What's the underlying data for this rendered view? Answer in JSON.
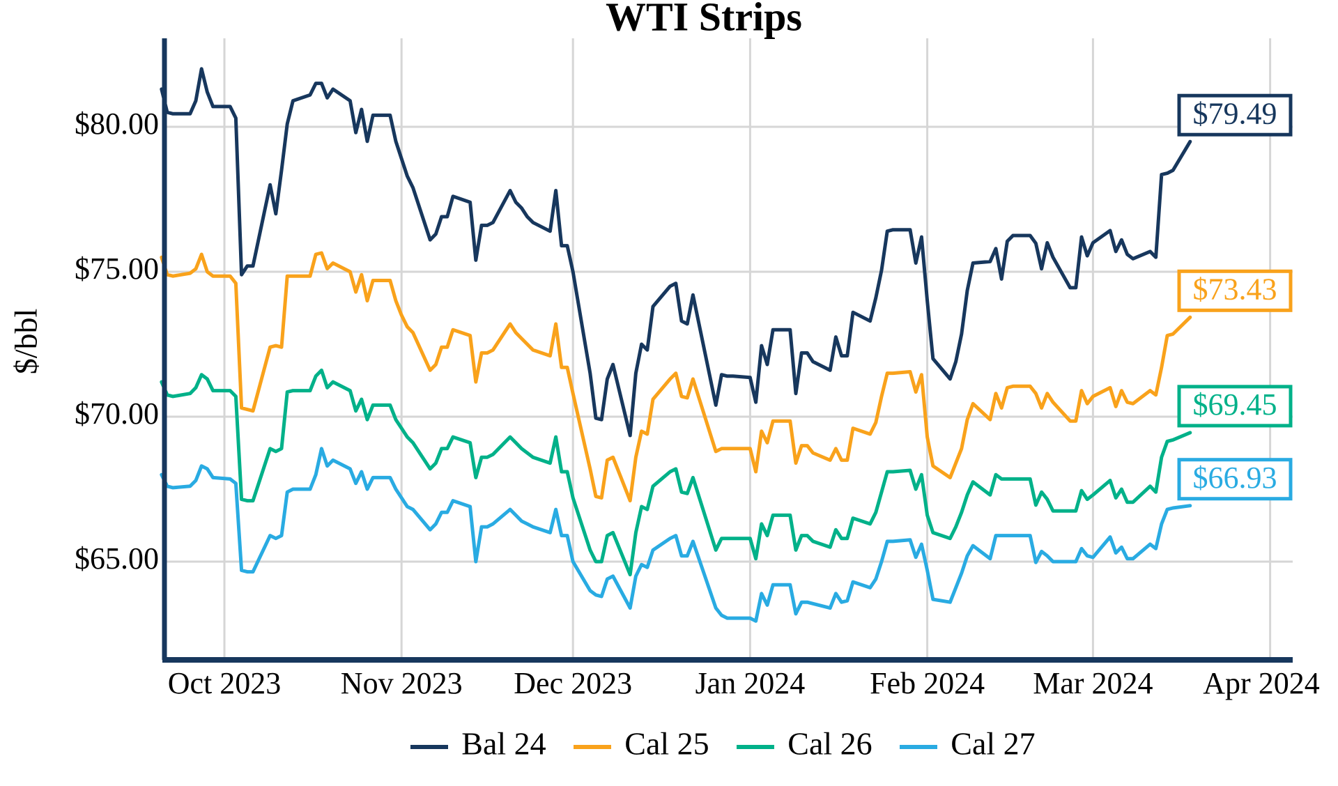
{
  "title": "WTI Strips",
  "y_axis_label": "$/bbl",
  "colors": {
    "bal24": "#17375d",
    "cal25": "#f9a21b",
    "cal26": "#00b189",
    "cal27": "#29abe2",
    "grid": "#d6d6d6",
    "axis": "#17375d",
    "background": "#ffffff"
  },
  "end_labels": [
    {
      "series": "Bal 24",
      "text": "$79.49"
    },
    {
      "series": "Cal 25",
      "text": "$73.43"
    },
    {
      "series": "Cal 26",
      "text": "$69.45"
    },
    {
      "series": "Cal 27",
      "text": "$66.93"
    }
  ],
  "chart_data": {
    "type": "line",
    "title": "WTI Strips",
    "xlabel": "",
    "ylabel": "$/bbl",
    "ylim": [
      61.5,
      83.2
    ],
    "yticks": [
      65,
      70,
      75,
      80
    ],
    "ytick_labels": [
      "$65.00",
      "$70.00",
      "$75.00",
      "$80.00"
    ],
    "xtick_labels": [
      "Oct 2023",
      "Nov 2023",
      "Dec 2023",
      "Jan 2024",
      "Feb 2024",
      "Mar 2024",
      "Apr 2024"
    ],
    "xtick_dates": [
      "2023-10-01",
      "2023-11-01",
      "2023-12-01",
      "2024-01-01",
      "2024-02-01",
      "2024-03-01",
      "2024-04-01"
    ],
    "grid": true,
    "legend_position": "bottom",
    "x": [
      "2023-09-20",
      "2023-09-21",
      "2023-09-22",
      "2023-09-25",
      "2023-09-26",
      "2023-09-27",
      "2023-09-28",
      "2023-09-29",
      "2023-10-02",
      "2023-10-03",
      "2023-10-04",
      "2023-10-05",
      "2023-10-06",
      "2023-10-09",
      "2023-10-10",
      "2023-10-11",
      "2023-10-12",
      "2023-10-13",
      "2023-10-16",
      "2023-10-17",
      "2023-10-18",
      "2023-10-19",
      "2023-10-20",
      "2023-10-23",
      "2023-10-24",
      "2023-10-25",
      "2023-10-26",
      "2023-10-27",
      "2023-10-30",
      "2023-10-31",
      "2023-11-01",
      "2023-11-02",
      "2023-11-03",
      "2023-11-06",
      "2023-11-07",
      "2023-11-08",
      "2023-11-09",
      "2023-11-10",
      "2023-11-13",
      "2023-11-14",
      "2023-11-15",
      "2023-11-16",
      "2023-11-17",
      "2023-11-20",
      "2023-11-21",
      "2023-11-22",
      "2023-11-23",
      "2023-11-24",
      "2023-11-27",
      "2023-11-28",
      "2023-11-29",
      "2023-11-30",
      "2023-12-01",
      "2023-12-04",
      "2023-12-05",
      "2023-12-06",
      "2023-12-07",
      "2023-12-08",
      "2023-12-11",
      "2023-12-12",
      "2023-12-13",
      "2023-12-14",
      "2023-12-15",
      "2023-12-18",
      "2023-12-19",
      "2023-12-20",
      "2023-12-21",
      "2023-12-22",
      "2023-12-26",
      "2023-12-27",
      "2023-12-28",
      "2023-12-29",
      "2024-01-01",
      "2024-01-02",
      "2024-01-03",
      "2024-01-04",
      "2024-01-05",
      "2024-01-08",
      "2024-01-09",
      "2024-01-10",
      "2024-01-11",
      "2024-01-12",
      "2024-01-15",
      "2024-01-16",
      "2024-01-17",
      "2024-01-18",
      "2024-01-19",
      "2024-01-22",
      "2024-01-23",
      "2024-01-24",
      "2024-01-25",
      "2024-01-26",
      "2024-01-29",
      "2024-01-30",
      "2024-01-31",
      "2024-02-01",
      "2024-02-02",
      "2024-02-05",
      "2024-02-06",
      "2024-02-07",
      "2024-02-08",
      "2024-02-09",
      "2024-02-12",
      "2024-02-13",
      "2024-02-14",
      "2024-02-15",
      "2024-02-16",
      "2024-02-19",
      "2024-02-20",
      "2024-02-21",
      "2024-02-22",
      "2024-02-23",
      "2024-02-26",
      "2024-02-27",
      "2024-02-28",
      "2024-02-29",
      "2024-03-01",
      "2024-03-04",
      "2024-03-05",
      "2024-03-06",
      "2024-03-07",
      "2024-03-08",
      "2024-03-11",
      "2024-03-12",
      "2024-03-13",
      "2024-03-14",
      "2024-03-15",
      "2024-03-18"
    ],
    "series": [
      {
        "name": "Bal 24",
        "color": "#17375d",
        "end_label": "$79.49",
        "values": [
          81.3,
          80.5,
          80.45,
          80.45,
          80.9,
          82.0,
          81.2,
          80.7,
          80.7,
          80.3,
          74.9,
          75.2,
          75.2,
          78.0,
          77.0,
          78.5,
          80.1,
          80.9,
          81.1,
          81.5,
          81.5,
          81.0,
          81.3,
          80.9,
          79.8,
          80.6,
          79.5,
          80.4,
          80.4,
          79.5,
          78.9,
          78.3,
          77.9,
          76.1,
          76.3,
          76.9,
          76.9,
          77.6,
          77.4,
          75.4,
          76.6,
          76.6,
          76.7,
          77.8,
          77.4,
          77.2,
          76.9,
          76.7,
          76.4,
          77.8,
          75.9,
          75.9,
          75.0,
          71.5,
          69.95,
          69.9,
          71.3,
          71.8,
          69.35,
          71.5,
          72.5,
          72.3,
          73.8,
          74.5,
          74.6,
          73.3,
          73.2,
          74.2,
          70.4,
          71.45,
          71.4,
          71.4,
          71.35,
          70.5,
          72.45,
          71.8,
          73.0,
          73.0,
          70.8,
          72.2,
          72.2,
          71.9,
          71.6,
          72.75,
          72.1,
          72.1,
          73.6,
          73.3,
          74.1,
          75.05,
          76.4,
          76.45,
          76.45,
          75.3,
          76.2,
          74.0,
          72.0,
          71.3,
          71.9,
          72.85,
          74.35,
          75.3,
          75.35,
          75.8,
          74.75,
          76.05,
          76.25,
          76.25,
          75.98,
          75.1,
          76.0,
          75.5,
          74.45,
          74.45,
          76.2,
          75.55,
          76.0,
          76.42,
          75.7,
          76.1,
          75.6,
          75.45,
          75.7,
          75.5,
          78.35,
          78.4,
          78.5,
          79.49
        ]
      },
      {
        "name": "Cal 25",
        "color": "#f9a21b",
        "end_label": "$73.43",
        "values": [
          75.5,
          74.9,
          74.85,
          74.95,
          75.1,
          75.6,
          75.0,
          74.85,
          74.85,
          74.6,
          70.3,
          70.25,
          70.2,
          72.4,
          72.45,
          72.4,
          74.85,
          74.85,
          74.85,
          75.6,
          75.65,
          75.1,
          75.3,
          75.0,
          74.3,
          74.9,
          74.0,
          74.7,
          74.7,
          74.0,
          73.5,
          73.1,
          72.9,
          71.6,
          71.8,
          72.4,
          72.4,
          73.0,
          72.8,
          71.2,
          72.2,
          72.2,
          72.3,
          73.2,
          72.9,
          72.7,
          72.5,
          72.3,
          72.1,
          73.2,
          71.7,
          71.7,
          70.8,
          68.2,
          67.25,
          67.2,
          68.5,
          68.6,
          67.1,
          68.6,
          69.5,
          69.4,
          70.6,
          71.3,
          71.5,
          70.7,
          70.65,
          71.3,
          68.8,
          68.9,
          68.9,
          68.9,
          68.9,
          68.1,
          69.5,
          69.1,
          69.85,
          69.85,
          68.4,
          69.0,
          69.0,
          68.75,
          68.5,
          68.9,
          68.5,
          68.5,
          69.6,
          69.4,
          69.8,
          70.7,
          71.5,
          71.5,
          71.55,
          70.85,
          71.45,
          69.3,
          68.3,
          67.9,
          68.4,
          68.9,
          69.9,
          70.45,
          69.9,
          70.8,
          70.3,
          71.0,
          71.05,
          71.05,
          70.8,
          70.3,
          70.8,
          70.5,
          69.85,
          69.85,
          70.9,
          70.45,
          70.7,
          71.0,
          70.35,
          70.9,
          70.5,
          70.45,
          70.9,
          70.75,
          71.7,
          72.8,
          72.85,
          73.43
        ]
      },
      {
        "name": "Cal 26",
        "color": "#00b189",
        "end_label": "$69.45",
        "values": [
          71.2,
          70.75,
          70.7,
          70.8,
          71.0,
          71.45,
          71.3,
          70.9,
          70.9,
          70.7,
          67.15,
          67.1,
          67.1,
          68.9,
          68.8,
          68.9,
          70.85,
          70.9,
          70.9,
          71.4,
          71.6,
          71.0,
          71.2,
          70.9,
          70.2,
          70.6,
          69.9,
          70.4,
          70.4,
          69.9,
          69.6,
          69.3,
          69.1,
          68.2,
          68.4,
          68.9,
          68.9,
          69.3,
          69.1,
          67.9,
          68.6,
          68.6,
          68.7,
          69.3,
          69.1,
          68.9,
          68.75,
          68.6,
          68.4,
          69.3,
          68.1,
          68.1,
          67.2,
          65.4,
          65.0,
          65.0,
          65.9,
          66.0,
          64.55,
          66.0,
          66.9,
          66.8,
          67.6,
          68.1,
          68.2,
          67.4,
          67.35,
          67.9,
          65.4,
          65.8,
          65.8,
          65.8,
          65.8,
          65.1,
          66.3,
          65.9,
          66.6,
          66.6,
          65.4,
          65.9,
          65.9,
          65.7,
          65.5,
          66.1,
          65.8,
          65.8,
          66.5,
          66.3,
          66.7,
          67.4,
          68.1,
          68.1,
          68.15,
          67.5,
          68.0,
          66.6,
          66.0,
          65.8,
          66.2,
          66.7,
          67.3,
          67.75,
          67.3,
          68.0,
          67.85,
          67.85,
          67.85,
          67.85,
          66.95,
          67.4,
          67.15,
          66.75,
          66.75,
          66.75,
          67.45,
          67.15,
          67.3,
          67.8,
          67.2,
          67.5,
          67.05,
          67.05,
          67.6,
          67.4,
          68.6,
          69.15,
          69.2,
          69.45
        ]
      },
      {
        "name": "Cal 27",
        "color": "#29abe2",
        "end_label": "$66.93",
        "values": [
          68.0,
          67.6,
          67.55,
          67.6,
          67.8,
          68.3,
          68.2,
          67.9,
          67.85,
          67.7,
          64.7,
          64.65,
          64.65,
          65.9,
          65.8,
          65.9,
          67.4,
          67.5,
          67.5,
          68.0,
          68.9,
          68.3,
          68.5,
          68.2,
          67.7,
          68.1,
          67.5,
          67.9,
          67.9,
          67.5,
          67.2,
          66.9,
          66.8,
          66.1,
          66.3,
          66.7,
          66.7,
          67.1,
          66.9,
          65.0,
          66.2,
          66.2,
          66.3,
          66.8,
          66.6,
          66.4,
          66.3,
          66.2,
          66.0,
          66.8,
          65.9,
          65.9,
          65.0,
          64.0,
          63.85,
          63.8,
          64.4,
          64.5,
          63.4,
          64.5,
          64.9,
          64.8,
          65.4,
          65.8,
          65.9,
          65.2,
          65.2,
          65.7,
          63.4,
          63.15,
          63.05,
          63.05,
          63.05,
          62.95,
          63.9,
          63.5,
          64.2,
          64.2,
          63.2,
          63.6,
          63.6,
          63.55,
          63.4,
          63.9,
          63.6,
          63.65,
          64.3,
          64.1,
          64.4,
          65.0,
          65.7,
          65.7,
          65.75,
          65.15,
          65.6,
          64.7,
          63.7,
          63.6,
          64.1,
          64.6,
          65.2,
          65.55,
          65.1,
          65.9,
          65.9,
          65.9,
          65.9,
          65.9,
          64.97,
          65.35,
          65.2,
          65.0,
          65.0,
          65.0,
          65.45,
          65.2,
          65.15,
          65.85,
          65.3,
          65.5,
          65.1,
          65.1,
          65.6,
          65.45,
          66.3,
          66.8,
          66.85,
          66.93
        ]
      }
    ]
  },
  "legend": {
    "items": [
      {
        "label": "Bal 24",
        "color": "#17375d"
      },
      {
        "label": "Cal 25",
        "color": "#f9a21b"
      },
      {
        "label": "Cal 26",
        "color": "#00b189"
      },
      {
        "label": "Cal 27",
        "color": "#29abe2"
      }
    ]
  }
}
